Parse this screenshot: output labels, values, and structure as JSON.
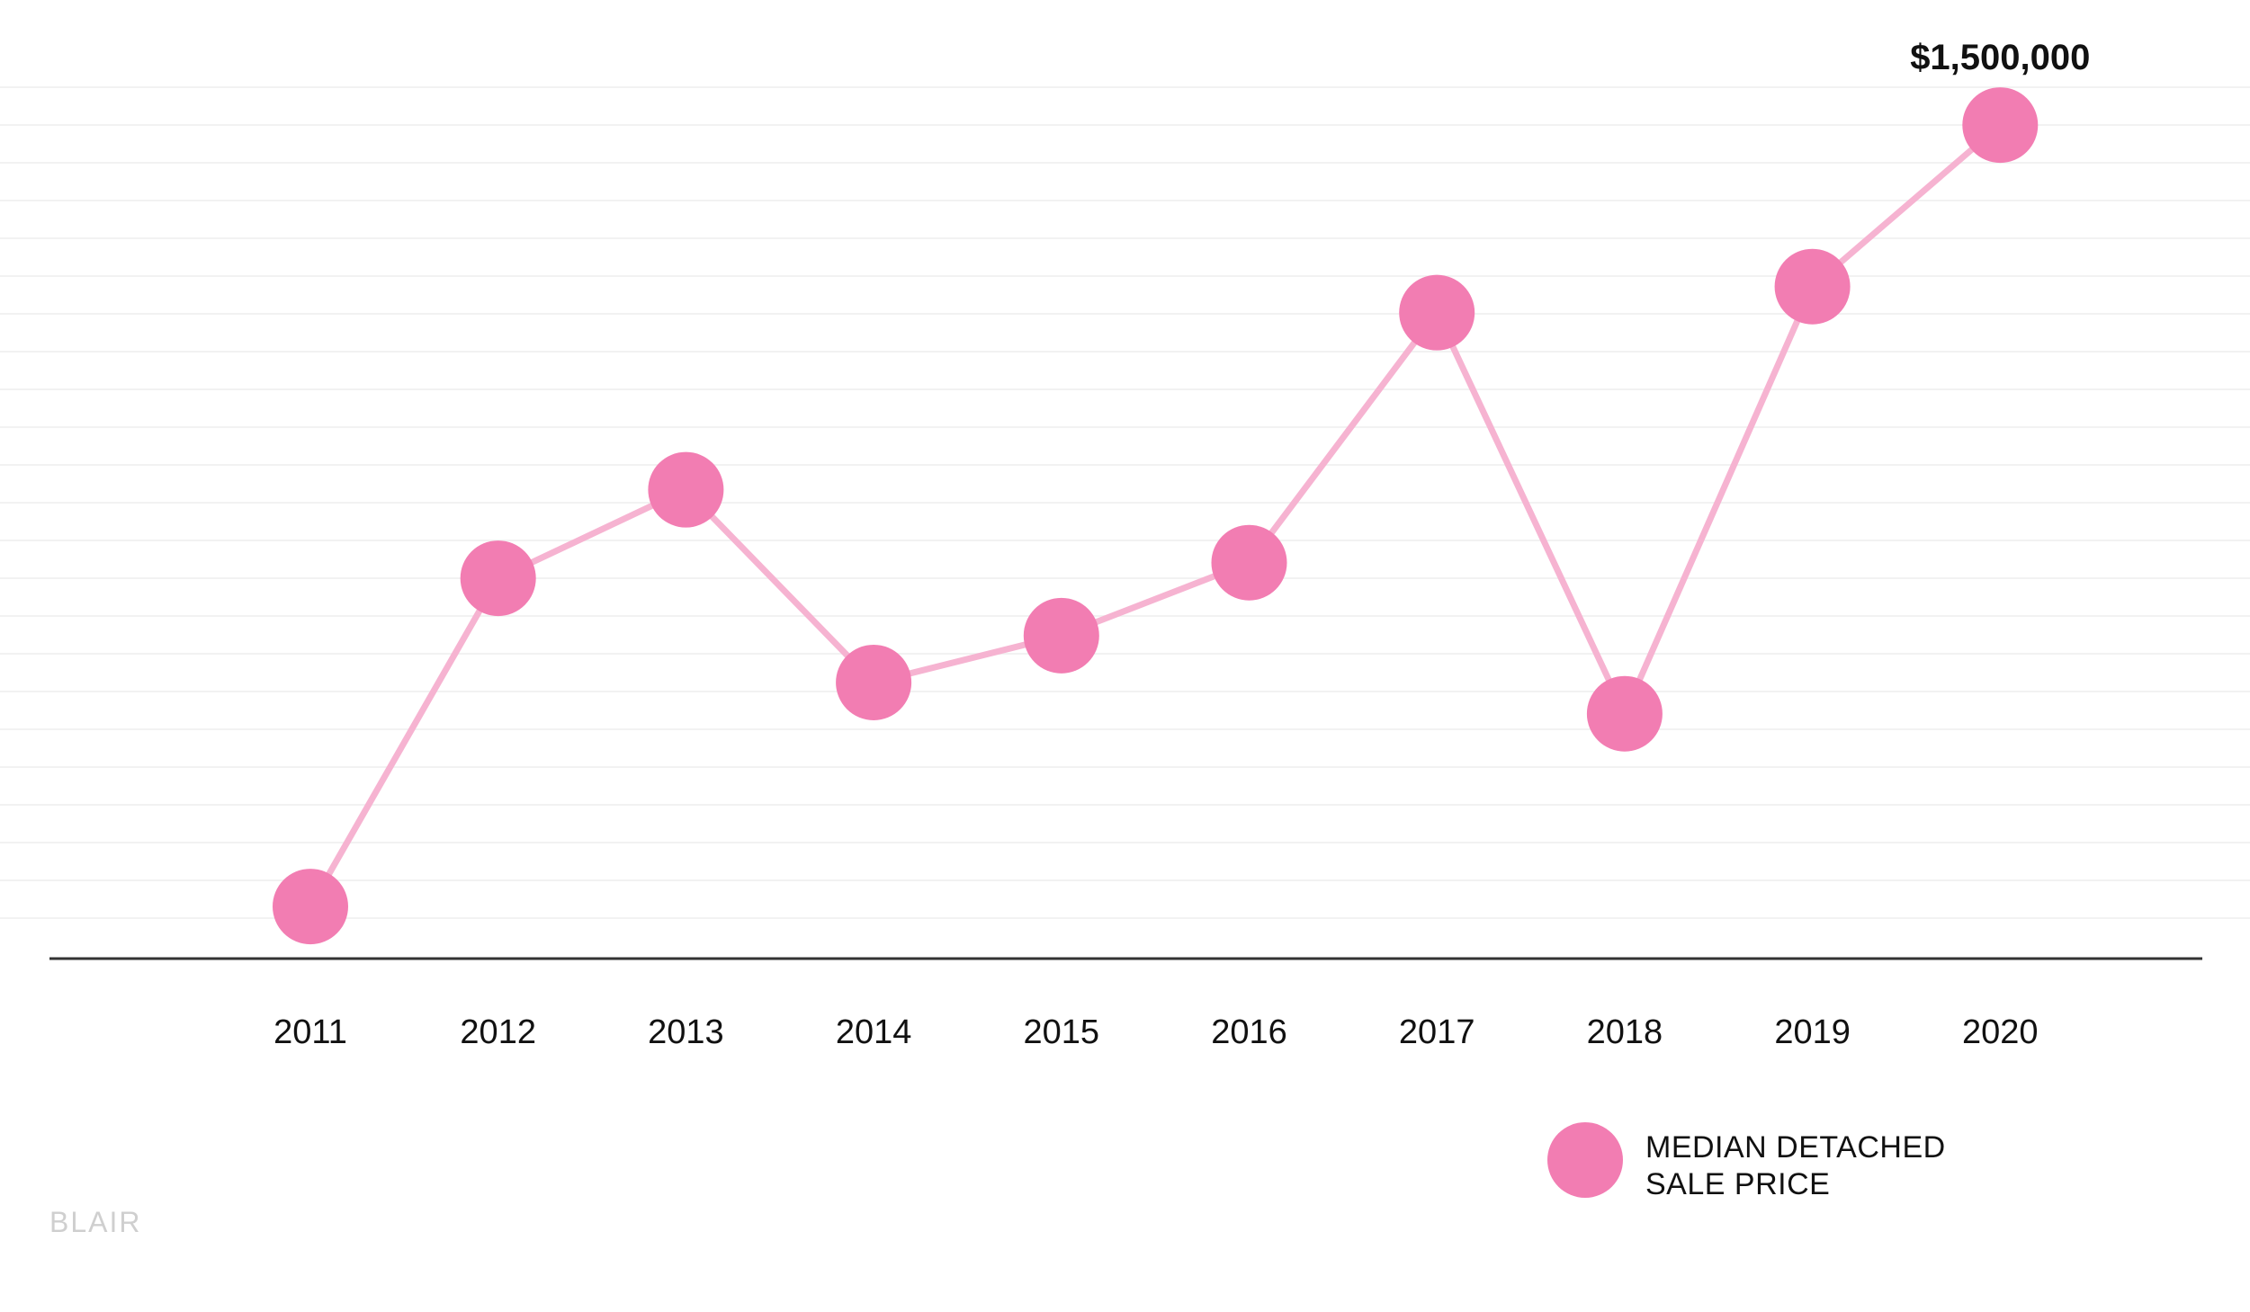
{
  "chart_data": {
    "type": "line",
    "categories": [
      "2011",
      "2012",
      "2013",
      "2014",
      "2015",
      "2016",
      "2017",
      "2018",
      "2019",
      "2020"
    ],
    "series": [
      {
        "name": "MEDIAN DETACHED SALE PRICE",
        "values": [
          750000,
          1065000,
          1150000,
          965000,
          1010000,
          1080000,
          1320000,
          935000,
          1345000,
          1500000
        ],
        "color": "#f27db2",
        "line_color": "#f6b3d1"
      }
    ],
    "annotations": [
      {
        "category": "2020",
        "text": "$1,500,000"
      }
    ],
    "legend": {
      "placement": "bottom-right",
      "lines": [
        "MEDIAN DETACHED",
        "SALE PRICE"
      ]
    },
    "ylim": [
      700000,
      1570000
    ],
    "grid": true,
    "title": "",
    "xlabel": "",
    "ylabel": ""
  },
  "source": "BLAIR",
  "colors": {
    "marker": "#f27db2",
    "line": "#f6b3d1",
    "axis": "#333333",
    "grid": "#f2f2f2",
    "text": "#111111",
    "source": "#cfcfcf"
  }
}
